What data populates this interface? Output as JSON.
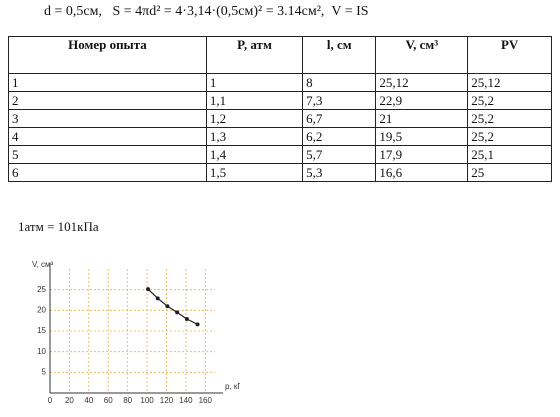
{
  "formula": "d = 0,5см,   S = 4πd² = 4·3,14·(0,5см)² = 3.14см²,  V = IS",
  "table": {
    "header": [
      "Номер опыта",
      "P, атм",
      "l, см",
      "V, см³",
      "PV"
    ],
    "rows": [
      [
        "1",
        "1",
        "8",
        "25,12",
        "25,12"
      ],
      [
        "2",
        "1,1",
        "7,3",
        "22,9",
        "25,2"
      ],
      [
        "3",
        "1,2",
        "6,7",
        "21",
        "25,2"
      ],
      [
        "4",
        "1,3",
        "6,2",
        "19,5",
        "25,2"
      ],
      [
        "5",
        "1,4",
        "5,7",
        "17,9",
        "25,1"
      ],
      [
        "6",
        "1,5",
        "5,3",
        "16,6",
        "25"
      ]
    ]
  },
  "note": "1атм = 101кПа",
  "chart_data": {
    "type": "scatter",
    "x_label": "p, кПа",
    "y_label": "V, см³",
    "x": [
      101,
      111,
      121,
      131,
      141,
      152
    ],
    "values": [
      25.12,
      22.9,
      21,
      19.5,
      17.9,
      16.6
    ],
    "color": "#222",
    "grid_color": "#e8b24a",
    "xlim": [
      0,
      170
    ],
    "ylim": [
      0,
      30
    ],
    "xticks": [
      0,
      20,
      40,
      60,
      80,
      100,
      120,
      140,
      160
    ],
    "yticks": [
      5,
      10,
      15,
      20,
      25
    ],
    "grid": true
  }
}
